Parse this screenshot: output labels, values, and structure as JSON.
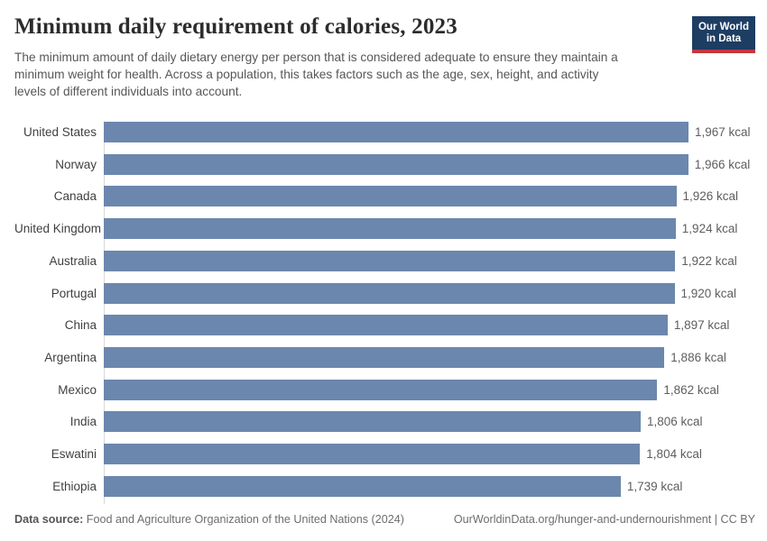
{
  "header": {
    "title": "Minimum daily requirement of calories, 2023",
    "subtitle": "The minimum amount of daily dietary energy per person that is considered adequate to ensure they maintain a\nminimum weight for health. Across a population, this takes factors such as the age, sex, height, and activity\nlevels of different individuals into account.",
    "logo": {
      "line1": "Our World",
      "line2": "in Data"
    }
  },
  "chart_data": {
    "type": "bar",
    "orientation": "horizontal",
    "title": "Minimum daily requirement of calories, 2023",
    "unit": "kcal",
    "categories": [
      "United States",
      "Norway",
      "Canada",
      "United Kingdom",
      "Australia",
      "Portugal",
      "China",
      "Argentina",
      "Mexico",
      "India",
      "Eswatini",
      "Ethiopia"
    ],
    "values": [
      1967,
      1966,
      1926,
      1924,
      1922,
      1920,
      1897,
      1886,
      1862,
      1806,
      1804,
      1739
    ],
    "value_labels": [
      "1,967 kcal",
      "1,966 kcal",
      "1,926 kcal",
      "1,924 kcal",
      "1,922 kcal",
      "1,920 kcal",
      "1,897 kcal",
      "1,886 kcal",
      "1,862 kcal",
      "1,806 kcal",
      "1,804 kcal",
      "1,739 kcal"
    ],
    "xlim": [
      0,
      1967
    ],
    "grid": false,
    "legend": false,
    "bar_color": "#6c87ad",
    "axis_line_color": "#d9d9d9"
  },
  "footer": {
    "source_label": "Data source:",
    "source_text": " Food and Agriculture Organization of the United Nations (2024)",
    "link_text": "OurWorldinData.org/hunger-and-undernourishment | CC BY"
  },
  "colors": {
    "logo_bg": "#1d3d63",
    "logo_stripe": "#c5383f",
    "title_text": "#2c2c2c",
    "subtitle_text": "#575757",
    "label_text": "#3f3f3f",
    "value_text": "#5e5e5e"
  }
}
